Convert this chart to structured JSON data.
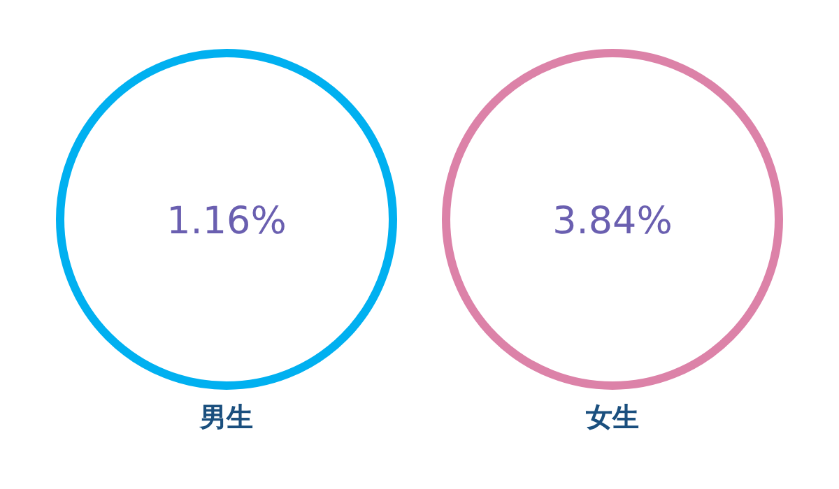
{
  "chart_data": {
    "type": "other",
    "categories": [
      "男生",
      "女生"
    ],
    "values": [
      1.16,
      3.84
    ],
    "value_labels": [
      "1.16%",
      "3.84%"
    ],
    "colors": [
      "#00b0f0",
      "#dc82a8"
    ]
  }
}
